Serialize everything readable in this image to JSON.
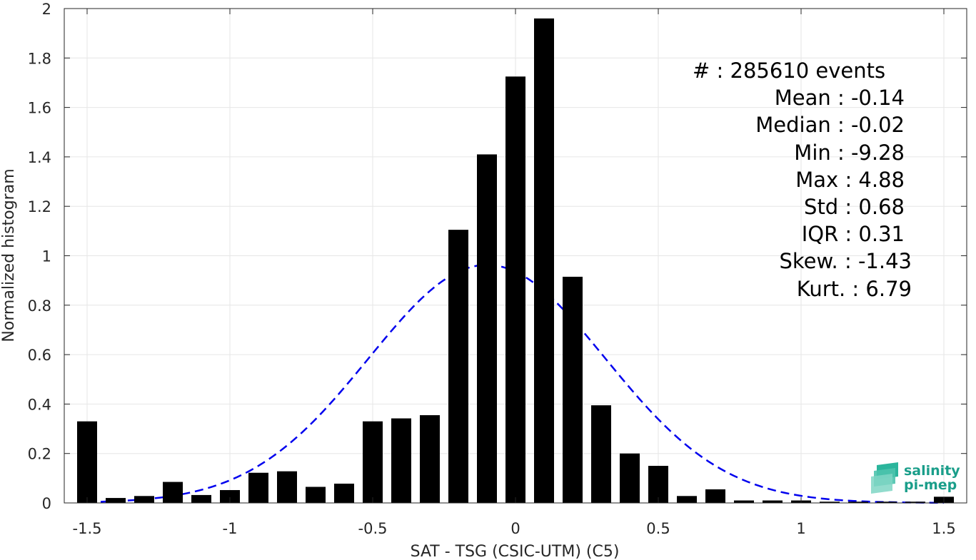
{
  "chart_data": {
    "type": "bar",
    "xlabel": "SAT - TSG (CSIC-UTM) (C5)",
    "ylabel": "Normalized histogram",
    "xlim": [
      -1.58,
      1.58
    ],
    "ylim": [
      0,
      2
    ],
    "xticks": [
      -1.5,
      -1,
      -0.5,
      0,
      0.5,
      1,
      1.5
    ],
    "xtick_labels": [
      "-1.5",
      "-1",
      "-0.5",
      "0",
      "0.5",
      "1",
      "1.5"
    ],
    "yticks": [
      0,
      0.2,
      0.4,
      0.6,
      0.8,
      1,
      1.2,
      1.4,
      1.6,
      1.8,
      2
    ],
    "ytick_labels": [
      "0",
      "0.2",
      "0.4",
      "0.6",
      "0.8",
      "1",
      "1.2",
      "1.4",
      "1.6",
      "1.8",
      "2"
    ],
    "grid": true,
    "bar_color": "#000000",
    "bar_width": 0.07,
    "x": [
      -1.5,
      -1.4,
      -1.3,
      -1.2,
      -1.1,
      -1.0,
      -0.9,
      -0.8,
      -0.7,
      -0.6,
      -0.5,
      -0.4,
      -0.3,
      -0.2,
      -0.1,
      0.0,
      0.1,
      0.2,
      0.3,
      0.4,
      0.5,
      0.6,
      0.7,
      0.8,
      0.9,
      1.0,
      1.1,
      1.2,
      1.3,
      1.4,
      1.5
    ],
    "values": [
      0.33,
      0.02,
      0.028,
      0.085,
      0.032,
      0.052,
      0.122,
      0.128,
      0.065,
      0.078,
      0.33,
      0.342,
      0.355,
      1.105,
      1.41,
      1.725,
      1.96,
      0.915,
      0.395,
      0.2,
      0.15,
      0.028,
      0.055,
      0.01,
      0.01,
      0.01,
      0.005,
      0.005,
      0.005,
      0.005,
      0.025
    ],
    "fit_curve": {
      "style": "dashed",
      "color": "#0000ee",
      "mean": -0.1,
      "std": 0.415,
      "peak": 0.963,
      "x_range": [
        -1.5,
        1.5
      ]
    },
    "annotation": {
      "lines": [
        "#   : 285610 events",
        "Mean : -0.14",
        "Median : -0.02",
        "Min : -9.28",
        "Max : 4.88",
        "Std : 0.68",
        "IQR : 0.31",
        "Skew. : -1.43",
        "Kurt. : 6.79"
      ],
      "placement": "top-right"
    },
    "logo": {
      "line1": "salinity",
      "line2": "pi-mep",
      "color": "#1a9e8a"
    }
  }
}
